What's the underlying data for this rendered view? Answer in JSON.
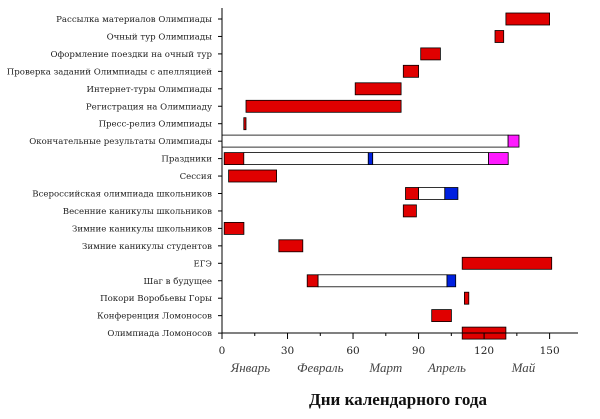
{
  "chart_data": {
    "type": "gantt",
    "xlabel": "Дни календарного года",
    "xlim": [
      0,
      163
    ],
    "xticks": [
      0,
      30,
      60,
      90,
      120,
      150
    ],
    "months": [
      {
        "label": "Январь",
        "x": 13
      },
      {
        "label": "Февраль",
        "x": 45
      },
      {
        "label": "Март",
        "x": 75
      },
      {
        "label": "Апрель",
        "x": 103
      },
      {
        "label": "Май",
        "x": 138
      }
    ],
    "colors": {
      "red": "#e00000",
      "white": "#ffffff",
      "blue": "#0020e0",
      "magenta": "#ff1aff",
      "axis": "#000000"
    },
    "categories": [
      "Рассылка материалов Олимпиады",
      "Очный тур Олимпиады",
      "Оформление поездки на очный тур",
      "Проверка заданий Олимпиады с апелляцией",
      "Интернет-туры Олимпиады",
      "Регистрация на Олимпиаду",
      "Пресс-релиз Олимпиады",
      "Окончательные результаты Олимпиады",
      "Праздники",
      "Сессия",
      "Всероссийская олимпиада школьников",
      "Весенние каникулы школьников",
      "Зимние каникулы школьников",
      "Зимние каникулы студентов",
      "ЕГЭ",
      "Шаг в будущее",
      "Покори Воробьевы Горы",
      "Конференция Ломоносов",
      "Олимпиада Ломоносов"
    ],
    "rows": [
      {
        "segments": [
          {
            "start": 130,
            "end": 150,
            "color": "red"
          }
        ]
      },
      {
        "segments": [
          {
            "start": 125,
            "end": 129,
            "color": "red"
          }
        ]
      },
      {
        "segments": [
          {
            "start": 91,
            "end": 100,
            "color": "red"
          }
        ]
      },
      {
        "segments": [
          {
            "start": 83,
            "end": 90,
            "color": "red"
          }
        ]
      },
      {
        "segments": [
          {
            "start": 61,
            "end": 82,
            "color": "red"
          }
        ]
      },
      {
        "segments": [
          {
            "start": 11,
            "end": 82,
            "color": "red"
          }
        ]
      },
      {
        "segments": [
          {
            "start": 10,
            "end": 11,
            "color": "red"
          }
        ]
      },
      {
        "segments": [
          {
            "start": 0,
            "end": 131,
            "color": "white"
          },
          {
            "start": 131,
            "end": 136,
            "color": "magenta"
          }
        ]
      },
      {
        "segments": [
          {
            "start": 1,
            "end": 10,
            "color": "red"
          },
          {
            "start": 10,
            "end": 67,
            "color": "white"
          },
          {
            "start": 67,
            "end": 69,
            "color": "blue"
          },
          {
            "start": 69,
            "end": 122,
            "color": "white"
          },
          {
            "start": 122,
            "end": 131,
            "color": "magenta"
          }
        ]
      },
      {
        "segments": [
          {
            "start": 3,
            "end": 25,
            "color": "red"
          }
        ]
      },
      {
        "segments": [
          {
            "start": 84,
            "end": 90,
            "color": "red"
          },
          {
            "start": 90,
            "end": 102,
            "color": "white"
          },
          {
            "start": 102,
            "end": 108,
            "color": "blue"
          }
        ]
      },
      {
        "segments": [
          {
            "start": 83,
            "end": 89,
            "color": "red"
          }
        ]
      },
      {
        "segments": [
          {
            "start": 1,
            "end": 10,
            "color": "red"
          }
        ]
      },
      {
        "segments": [
          {
            "start": 26,
            "end": 37,
            "color": "red"
          }
        ]
      },
      {
        "segments": [
          {
            "start": 110,
            "end": 151,
            "color": "red"
          }
        ]
      },
      {
        "segments": [
          {
            "start": 39,
            "end": 44,
            "color": "red"
          },
          {
            "start": 44,
            "end": 103,
            "color": "white"
          },
          {
            "start": 103,
            "end": 107,
            "color": "blue"
          }
        ]
      },
      {
        "segments": [
          {
            "start": 111,
            "end": 113,
            "color": "red"
          }
        ]
      },
      {
        "segments": [
          {
            "start": 96,
            "end": 105,
            "color": "red"
          }
        ]
      },
      {
        "segments": [
          {
            "start": 110,
            "end": 130,
            "color": "red"
          }
        ]
      }
    ]
  }
}
